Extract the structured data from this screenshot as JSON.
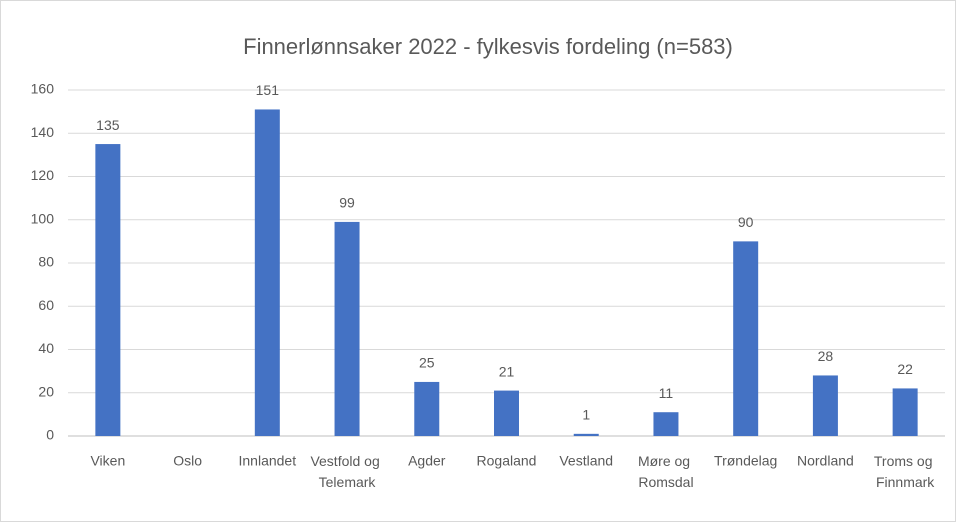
{
  "chart_data": {
    "type": "bar",
    "title": "Finnerlønnsaker 2022 - fylkesvis fordeling (n=583)",
    "categories": [
      "Viken",
      "Oslo",
      "Innlandet",
      "Vestfold og Telemark",
      "Agder",
      "Rogaland",
      "Vestland",
      "Møre og Romsdal",
      "Trøndelag",
      "Nordland",
      "Troms og Finnmark"
    ],
    "values": [
      135,
      null,
      151,
      99,
      25,
      21,
      1,
      11,
      90,
      28,
      22
    ],
    "color": "#4472c4",
    "ylim": [
      0,
      160
    ],
    "yticks": [
      0,
      20,
      40,
      60,
      80,
      100,
      120,
      140,
      160
    ],
    "grid": true
  }
}
